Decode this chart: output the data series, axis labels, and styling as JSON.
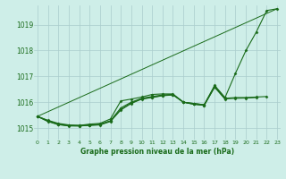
{
  "title": "Graphe pression niveau de la mer (hPa)",
  "bg_color": "#ceeee8",
  "grid_color": "#aacccc",
  "line_color": "#1a6b1a",
  "x_ticks": [
    0,
    1,
    2,
    3,
    4,
    5,
    6,
    7,
    8,
    9,
    10,
    11,
    12,
    13,
    14,
    15,
    16,
    17,
    18,
    19,
    20,
    21,
    22,
    23
  ],
  "y_ticks": [
    1015,
    1016,
    1017,
    1018,
    1019
  ],
  "ylim": [
    1014.55,
    1019.75
  ],
  "xlim": [
    -0.3,
    23.3
  ],
  "series_no_marker": {
    "x": [
      0,
      23
    ],
    "y": [
      1015.45,
      1019.62
    ]
  },
  "series_main": {
    "x": [
      0,
      1,
      2,
      3,
      4,
      5,
      6,
      7,
      8,
      9,
      10,
      11,
      12,
      13,
      14,
      15,
      16,
      17,
      18,
      19,
      20,
      21,
      22,
      23
    ],
    "y": [
      1015.45,
      1015.3,
      1015.18,
      1015.12,
      1015.1,
      1015.15,
      1015.18,
      1015.35,
      1016.05,
      1016.12,
      1016.2,
      1016.3,
      1016.32,
      1016.32,
      1016.0,
      1015.95,
      1015.9,
      1016.65,
      1016.18,
      1017.12,
      1018.0,
      1018.72,
      1019.55,
      1019.62
    ]
  },
  "series_mid": {
    "x": [
      0,
      1,
      2,
      3,
      4,
      5,
      6,
      7,
      8,
      9,
      10,
      11,
      12,
      13,
      14,
      15,
      16,
      17,
      18,
      19,
      20,
      21,
      22,
      23
    ],
    "y": [
      1015.45,
      1015.28,
      1015.15,
      1015.1,
      1015.1,
      1015.12,
      1015.15,
      1015.28,
      1015.78,
      1016.0,
      1016.15,
      1016.22,
      1016.28,
      1016.3,
      1016.0,
      1015.95,
      1015.9,
      1016.62,
      1016.15,
      1016.18,
      1016.18,
      1016.2,
      1016.22,
      null
    ]
  },
  "series_low": {
    "x": [
      0,
      1,
      2,
      3,
      4,
      5,
      6,
      7,
      8,
      9,
      10,
      11,
      12,
      13,
      14,
      15,
      16,
      17,
      18
    ],
    "y": [
      1015.45,
      1015.25,
      1015.13,
      1015.08,
      1015.08,
      1015.1,
      1015.12,
      1015.25,
      1015.7,
      1015.95,
      1016.12,
      1016.18,
      1016.25,
      1016.28,
      1016.0,
      1015.92,
      1015.88,
      1016.58,
      1016.12
    ]
  },
  "series_extra": {
    "x": [
      0,
      1,
      2,
      3,
      4,
      5,
      6,
      7,
      8,
      9,
      10,
      11,
      12,
      13,
      14,
      15,
      16,
      17,
      18,
      19,
      20,
      21,
      22,
      23
    ],
    "y": [
      1015.45,
      1015.27,
      1015.14,
      1015.09,
      1015.08,
      1015.11,
      1015.13,
      1015.27,
      1015.72,
      1015.97,
      1016.13,
      1016.19,
      1016.26,
      1016.29,
      1016.0,
      1015.92,
      1015.88,
      1016.59,
      1016.13,
      1016.15,
      1016.16,
      1016.18,
      null,
      null
    ]
  }
}
